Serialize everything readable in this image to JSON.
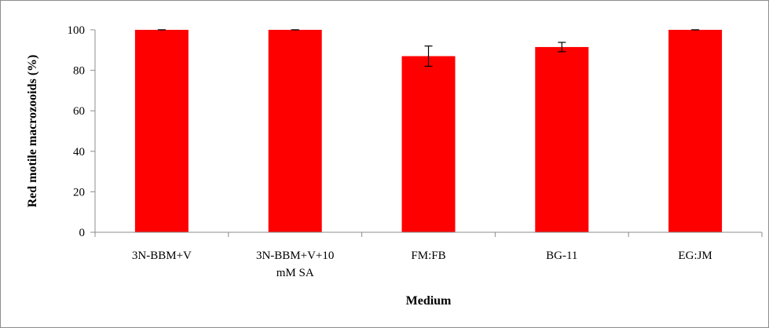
{
  "chart_data": {
    "type": "bar",
    "categories": [
      [
        "3N-BBM+V"
      ],
      [
        "3N-BBM+V+10",
        "mM SA"
      ],
      [
        "FM:FB"
      ],
      [
        "BG-11"
      ],
      [
        "EG:JM"
      ]
    ],
    "values": [
      100,
      100,
      87,
      91.5,
      100
    ],
    "errors": [
      0,
      0,
      5,
      2.3,
      0
    ],
    "xlabel": "Medium",
    "ylabel": "Red motile macrozooids (%)",
    "ylim": [
      0,
      100
    ],
    "yticks": [
      0,
      20,
      40,
      60,
      80,
      100
    ],
    "grid": false,
    "bar_color": "#ff0000",
    "axis_color": "#8c8c8c"
  }
}
